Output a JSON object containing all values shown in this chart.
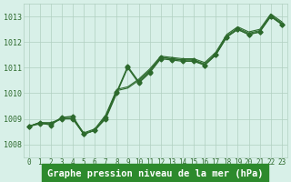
{
  "title": "Graphe pression niveau de la mer (hPa)",
  "xlabel_hours": [
    0,
    1,
    2,
    3,
    4,
    5,
    6,
    7,
    8,
    9,
    10,
    11,
    12,
    13,
    14,
    15,
    16,
    17,
    18,
    19,
    20,
    21,
    22,
    23
  ],
  "ylim": [
    1007.5,
    1013.5
  ],
  "xlim": [
    -0.5,
    23.5
  ],
  "yticks": [
    1008,
    1009,
    1010,
    1011,
    1012,
    1013
  ],
  "xticks": [
    0,
    1,
    2,
    3,
    4,
    5,
    6,
    7,
    8,
    9,
    10,
    11,
    12,
    13,
    14,
    15,
    16,
    17,
    18,
    19,
    20,
    21,
    22,
    23
  ],
  "line_color": "#2d6a2d",
  "bg_color": "#d8f0e8",
  "grid_color": "#b0cfc0",
  "series": [
    [
      1008.7,
      1008.8,
      1008.8,
      1009.0,
      1009.0,
      1008.4,
      1008.55,
      1009.0,
      1010.0,
      1011.0,
      1010.4,
      1010.8,
      1011.35,
      1011.3,
      1011.25,
      1011.25,
      1011.1,
      1011.5,
      1012.2,
      1012.5,
      1012.3,
      1012.4,
      1013.0,
      1012.7
    ],
    [
      1008.7,
      1008.85,
      1008.85,
      1009.0,
      1009.0,
      1008.4,
      1008.55,
      1009.1,
      1010.1,
      1010.2,
      1010.5,
      1010.9,
      1011.4,
      1011.35,
      1011.3,
      1011.3,
      1011.15,
      1011.55,
      1012.25,
      1012.55,
      1012.35,
      1012.45,
      1013.05,
      1012.75
    ],
    [
      1008.7,
      1008.85,
      1008.8,
      1009.05,
      1009.05,
      1008.45,
      1008.6,
      1009.15,
      1010.15,
      1010.25,
      1010.55,
      1010.95,
      1011.45,
      1011.4,
      1011.35,
      1011.35,
      1011.2,
      1011.6,
      1012.3,
      1012.6,
      1012.4,
      1012.5,
      1013.1,
      1012.8
    ],
    [
      1008.7,
      1008.85,
      1008.75,
      1009.05,
      1009.1,
      1008.4,
      1008.55,
      1009.05,
      1010.05,
      1011.05,
      1010.45,
      1010.85,
      1011.4,
      1011.35,
      1011.3,
      1011.3,
      1011.1,
      1011.5,
      1012.2,
      1012.5,
      1012.3,
      1012.4,
      1013.02,
      1012.7
    ]
  ],
  "marker_series_idx": 0,
  "title_color": "#1a4a1a",
  "title_bg": "#2d8a2d",
  "title_fontsize": 7.5
}
